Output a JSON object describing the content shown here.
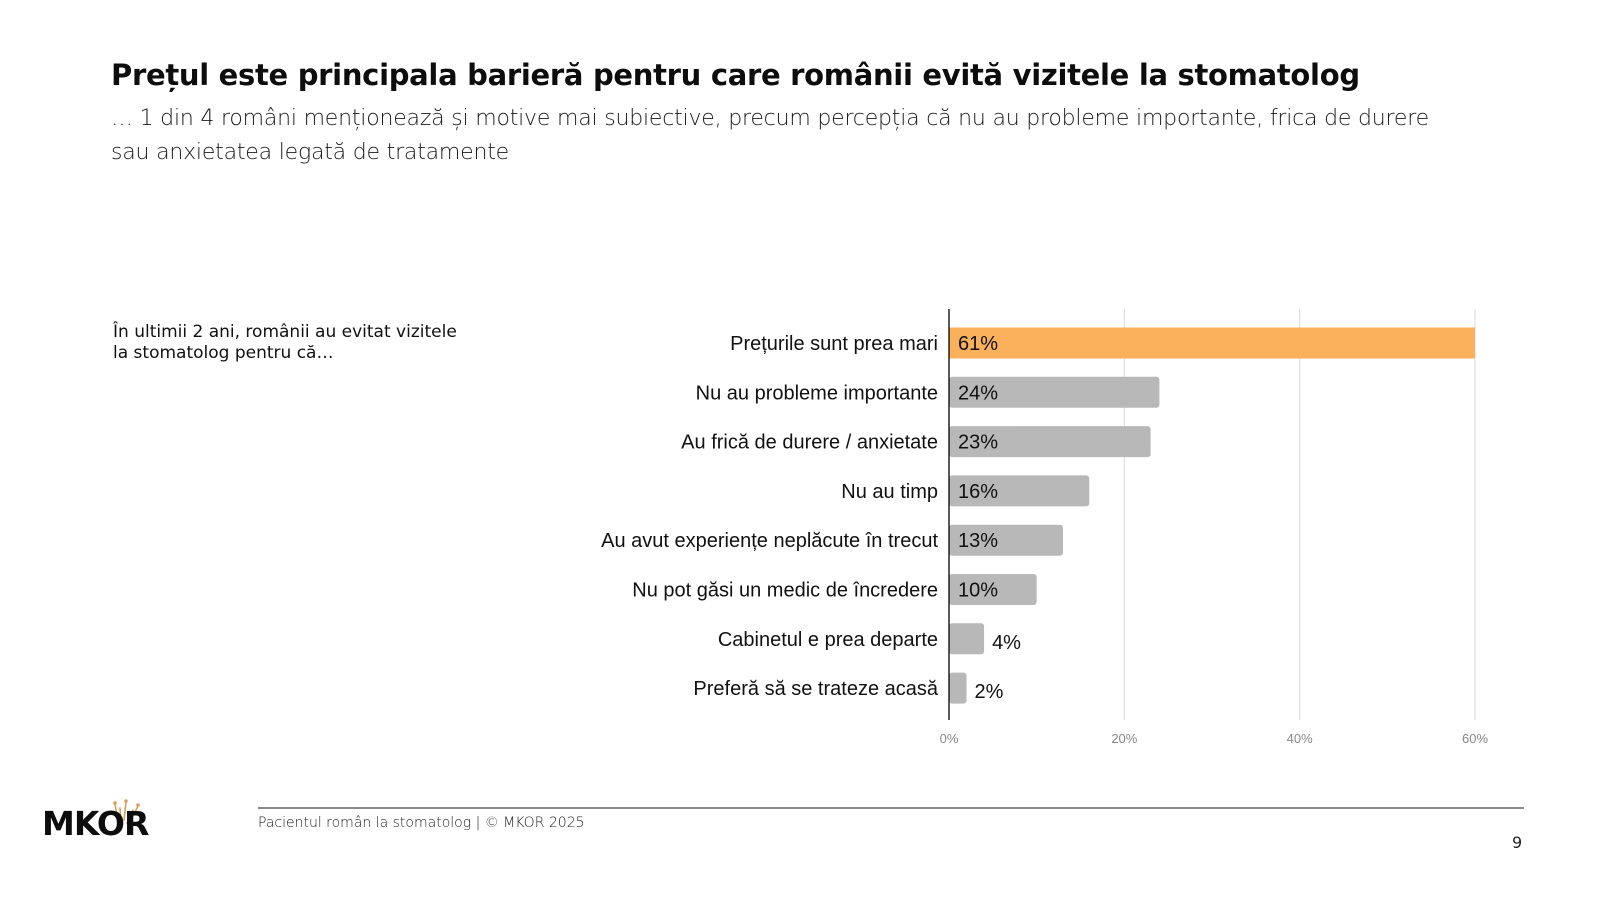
{
  "header": {
    "title": "Prețul este principala barieră pentru care românii evită vizitele la stomatolog",
    "subtitle": "… 1 din 4 români menționează și motive mai subiective, precum percepția că nu au probleme importante, frica de durere sau anxietatea legată de tratamente"
  },
  "question": "În ultimii 2 ani, românii au evitat vizitele la stomatolog pentru că…",
  "colors": {
    "highlight": "#FBB15C",
    "bar": "#B8B8B8",
    "grid": "#D9D9D9",
    "axis": "#000000",
    "logo_crown": "#D9A05B"
  },
  "chart_data": {
    "type": "bar",
    "orientation": "horizontal",
    "title": "",
    "xlabel": "",
    "ylabel": "",
    "categories": [
      "Prețurile sunt prea mari",
      "Nu au probleme importante",
      "Au frică de durere / anxietate",
      "Nu au timp",
      "Au avut experiențe neplăcute în trecut",
      "Nu pot găsi un medic de încredere",
      "Cabinetul e prea departe",
      "Preferă să se trateze acasă"
    ],
    "values": [
      61,
      24,
      23,
      16,
      13,
      10,
      4,
      2
    ],
    "value_labels": [
      "61%",
      "24%",
      "23%",
      "16%",
      "13%",
      "10%",
      "4%",
      "2%"
    ],
    "highlight_index": 0,
    "xlim": [
      0,
      60
    ],
    "xticks": [
      0,
      20,
      40,
      60
    ],
    "xtick_labels": [
      "0%",
      "20%",
      "40%",
      "60%"
    ],
    "grid": true,
    "legend": "none"
  },
  "footer": {
    "logo": "MKOR",
    "text": "Pacientul român la stomatolog | © MKOR 2025",
    "page_number": "9"
  }
}
